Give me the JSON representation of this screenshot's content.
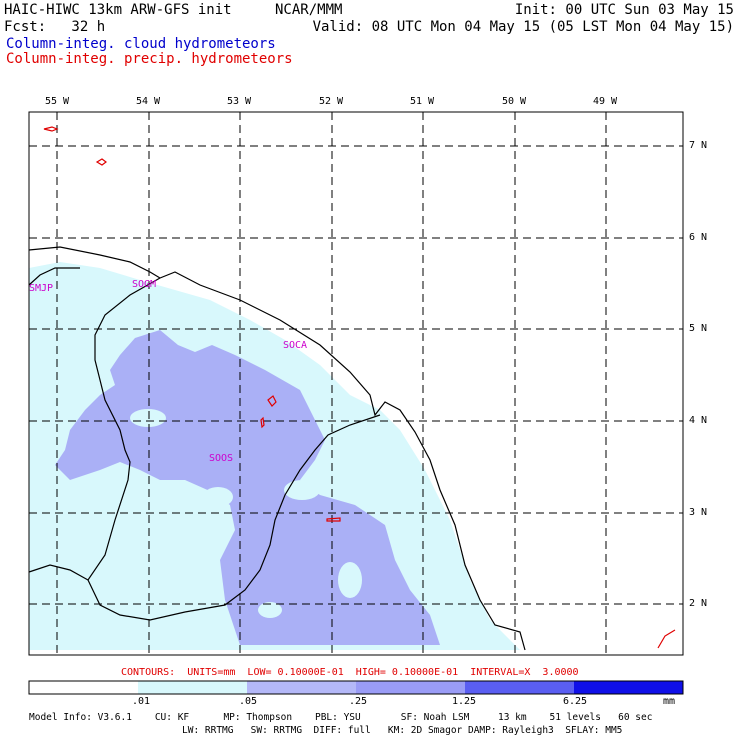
{
  "header": {
    "title_left": "HAIC-HIWC 13km ARW-GFS init",
    "title_center": "NCAR/MMM",
    "init": "Init: 00 UTC Sun 03 May 15",
    "fcst": "Fcst:   32 h",
    "valid": "Valid: 08 UTC Mon 04 May 15 (05 LST Mon 04 May 15)",
    "field1": "Column-integ. cloud hydrometeors",
    "field2": "Column-integ. precip. hydrometeors"
  },
  "map": {
    "lon_labels": [
      "55 W",
      "54 W",
      "53 W",
      "52 W",
      "51 W",
      "50 W",
      "49 W"
    ],
    "lat_labels": [
      "7 N",
      "6 N",
      "5 N",
      "4 N",
      "3 N",
      "2 N"
    ],
    "stations": [
      "SMJP",
      "SOGM",
      "SOCA",
      "SOOS"
    ]
  },
  "contours": "CONTOURS:  UNITS=mm  LOW= 0.10000E-01  HIGH= 0.10000E-01  INTERVAL=X  3.0000",
  "colorbar": {
    "ticks": [
      ".01",
      ".05",
      ".25",
      "1.25",
      "6.25"
    ],
    "unit": "mm",
    "colors": [
      "#ffffff",
      "#d8f8fc",
      "#b4b8f8",
      "#9a9cf6",
      "#5a5ef2",
      "#1010e8"
    ]
  },
  "model_info": {
    "line1": "Model Info: V3.6.1    CU: KF      MP: Thompson    PBL: YSU       SF: Noah LSM     13 km    51 levels   60 sec",
    "line2": "LW: RRTMG   SW: RRTMG  DIFF: full   KM: 2D Smagor DAMP: Rayleigh3  SFLAY: MM5"
  },
  "colors": {
    "cloud_text": "#0000cc",
    "precip_text": "#e00000",
    "station": "#cc00cc",
    "light_fill": "#d8f8fc",
    "medium_fill": "#aab0f6"
  }
}
